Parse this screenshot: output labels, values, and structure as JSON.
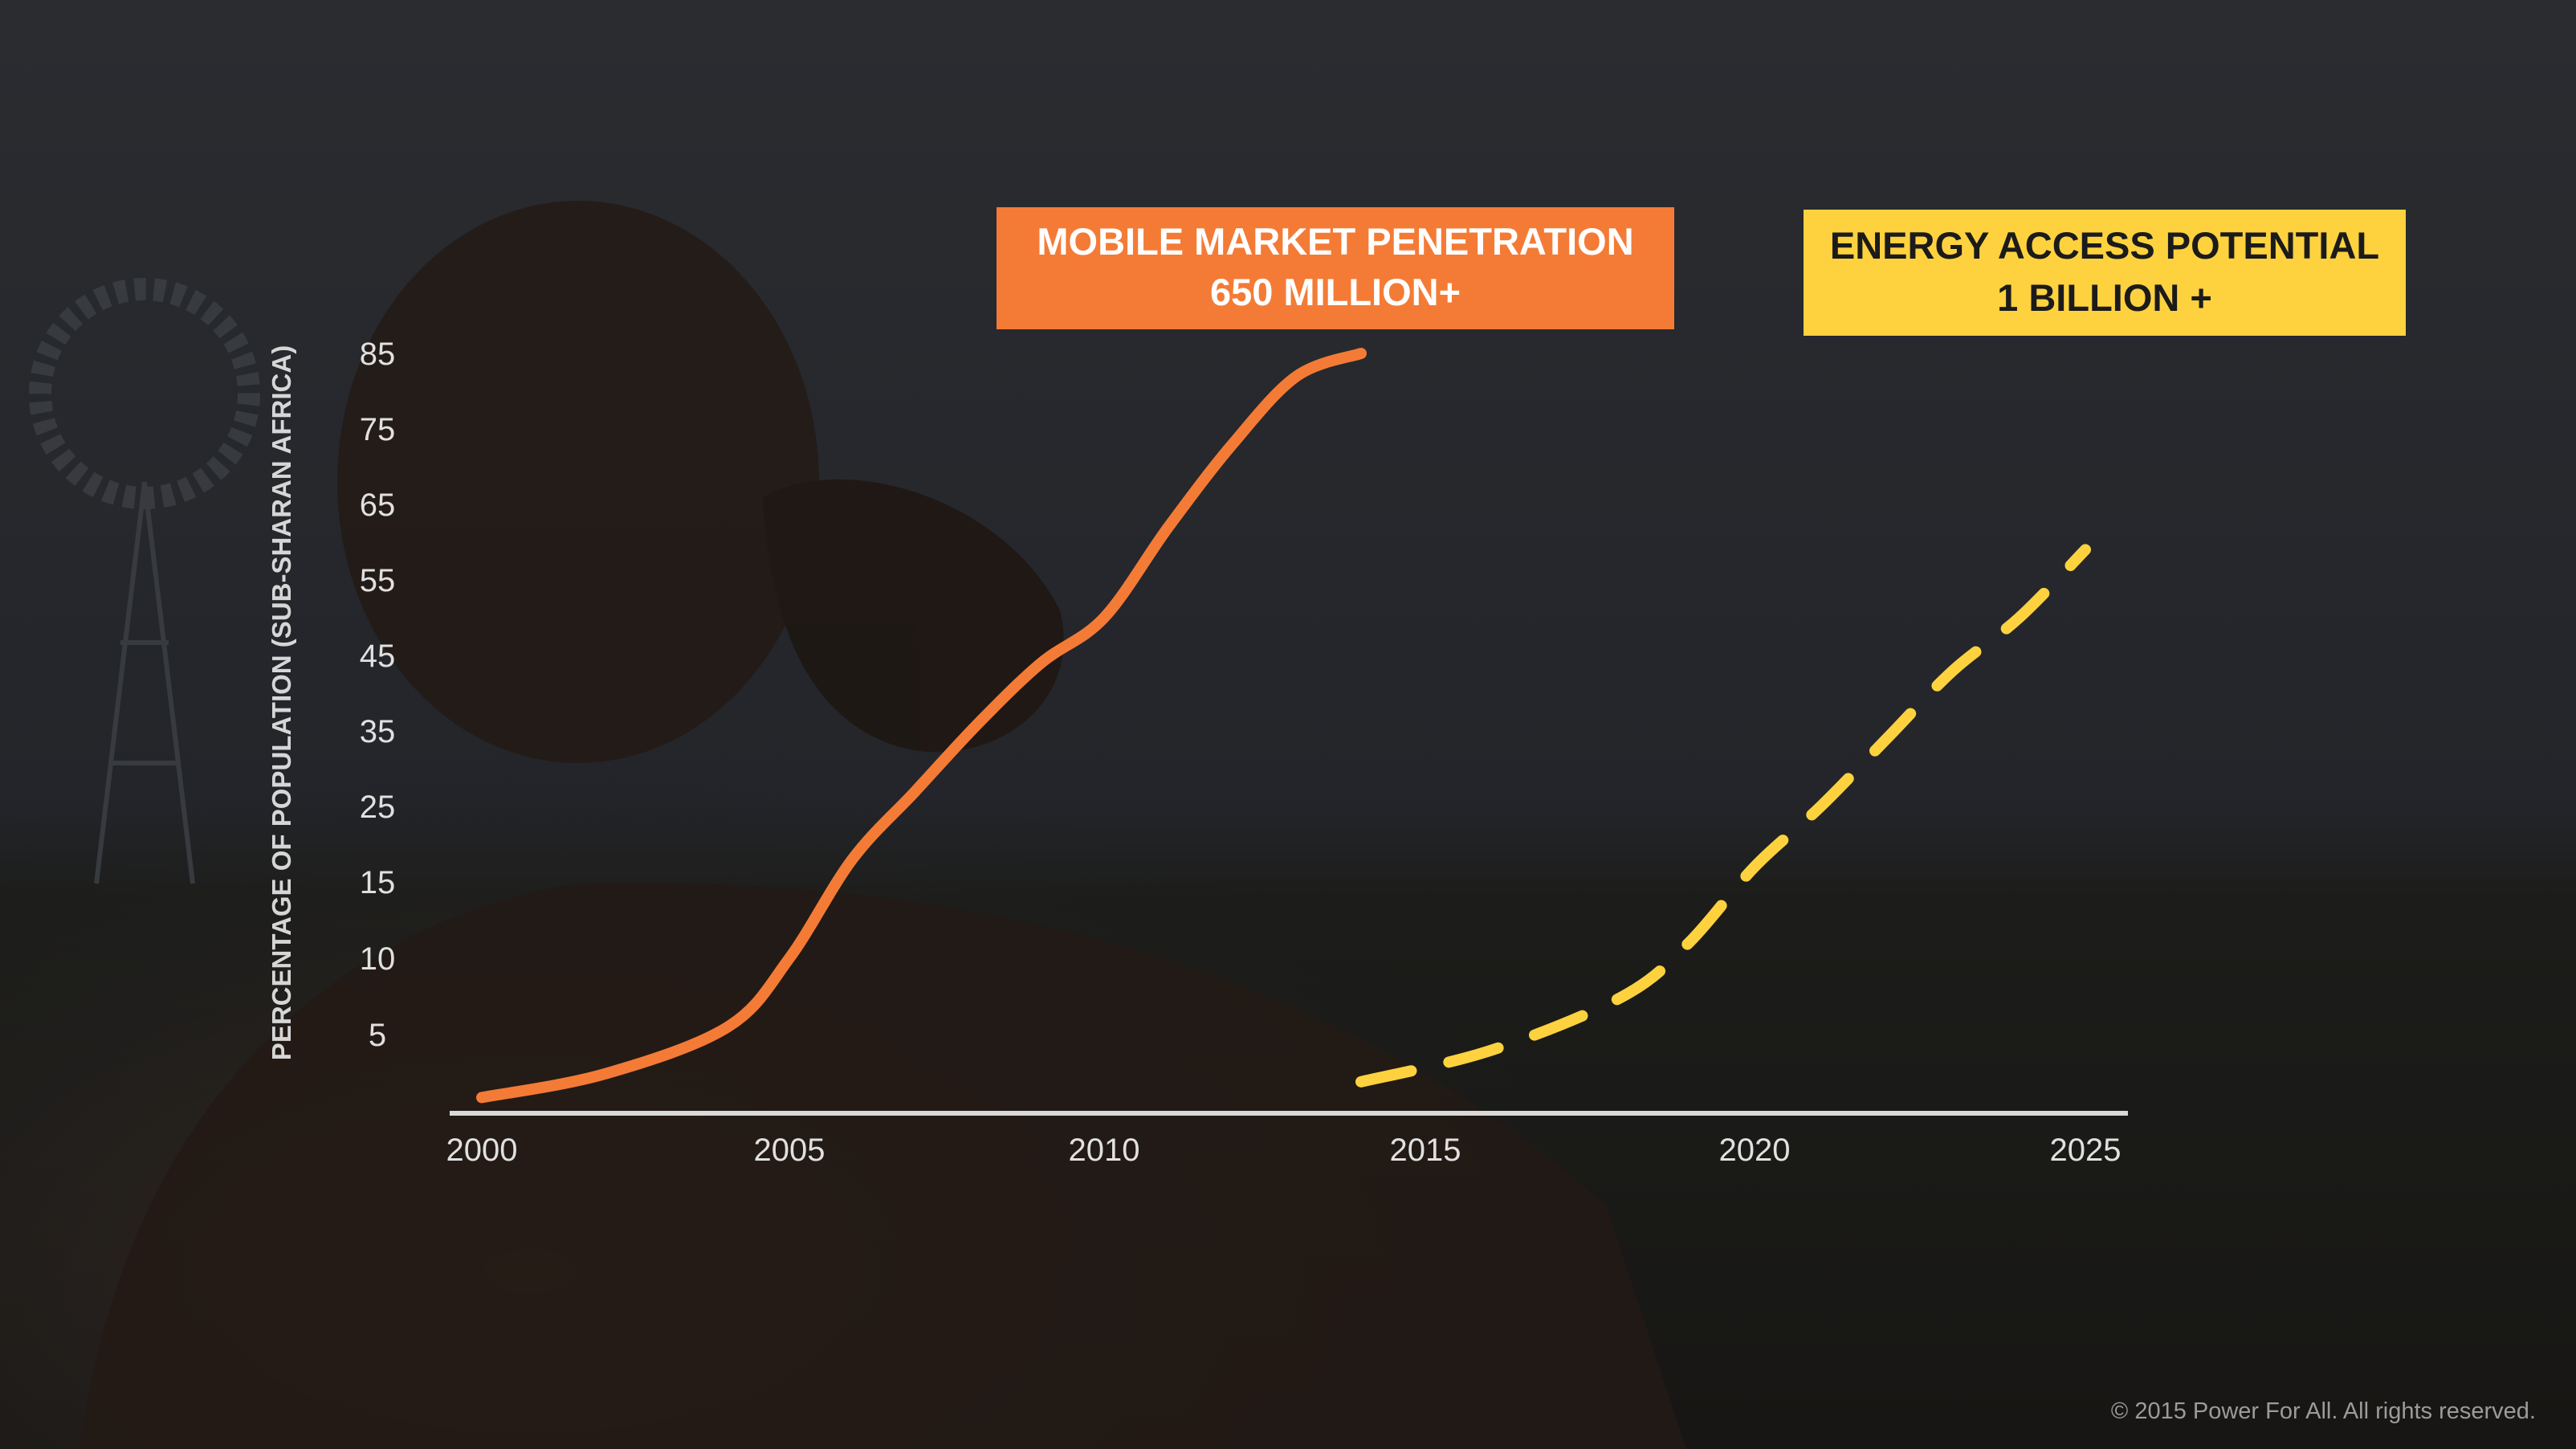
{
  "chart_data": {
    "type": "line",
    "ylabel": "PERCENTAGE OF POPULATION (SUB-SHARAN AFRICA)",
    "xlabel": "",
    "x_ticks": [
      2000,
      2005,
      2010,
      2015,
      2020,
      2025
    ],
    "y_ticks": [
      85,
      75,
      65,
      55,
      45,
      35,
      25,
      15,
      10,
      5
    ],
    "series": [
      {
        "name": "MOBILE MARKET PENETRATION",
        "subtitle": "650 MILLION+",
        "color": "#f47b36",
        "style": "solid",
        "points": [
          [
            2000,
            1
          ],
          [
            2002,
            2.5
          ],
          [
            2004,
            5.5
          ],
          [
            2005,
            10
          ],
          [
            2006,
            18
          ],
          [
            2007,
            27
          ],
          [
            2008,
            36
          ],
          [
            2009,
            44
          ],
          [
            2010,
            50
          ],
          [
            2011,
            62
          ],
          [
            2012,
            73
          ],
          [
            2013,
            82
          ],
          [
            2014,
            85
          ]
        ]
      },
      {
        "name": "ENERGY ACCESS POTENTIAL",
        "subtitle": "1 BILLION +",
        "color": "#fed23e",
        "style": "dashed",
        "points": [
          [
            2014,
            2
          ],
          [
            2016,
            4
          ],
          [
            2018,
            7.5
          ],
          [
            2019,
            11
          ],
          [
            2020,
            17
          ],
          [
            2021,
            25
          ],
          [
            2022,
            34
          ],
          [
            2023,
            43
          ],
          [
            2024,
            50
          ],
          [
            2025,
            59
          ]
        ]
      }
    ],
    "grid": false,
    "legend": "callout boxes above series"
  },
  "colors": {
    "mobile": "#f47b36",
    "energy": "#fed23e",
    "axis": "#d9d9d9",
    "tick_label": "#e0e0e0",
    "background": "#1d1f22"
  },
  "footer": "© 2015 Power For All.  All rights reserved."
}
